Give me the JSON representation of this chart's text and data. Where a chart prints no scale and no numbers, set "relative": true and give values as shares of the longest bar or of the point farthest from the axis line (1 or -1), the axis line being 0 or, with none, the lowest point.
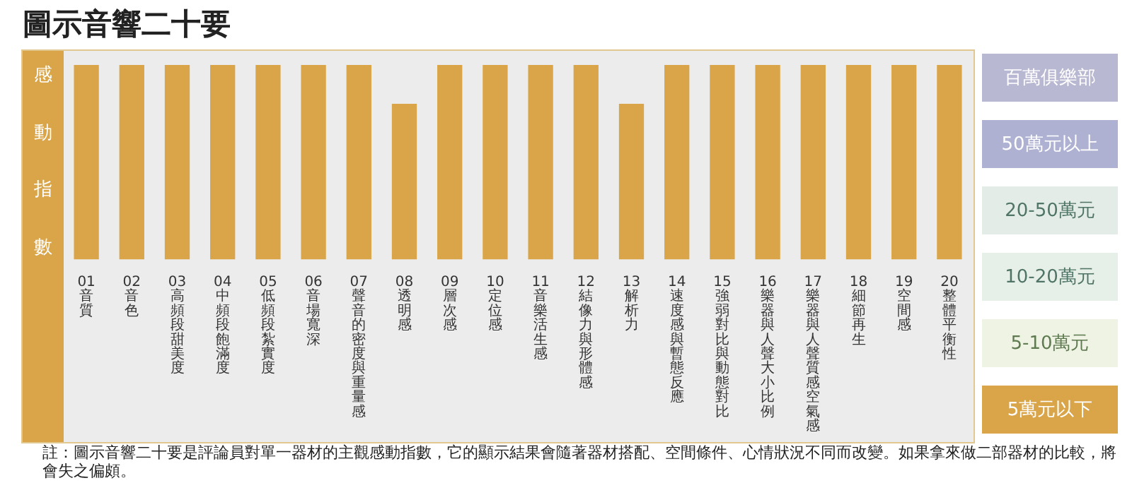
{
  "chart_data": {
    "type": "bar",
    "title": "圖示音響二十要",
    "ylabel": "感動指數",
    "relative": true,
    "categories": [
      "01 音質",
      "02 音色",
      "03 高頻段甜美度",
      "04 中頻段飽滿度",
      "05 低頻段紮實度",
      "06 音場寬深",
      "07 聲音的密度與重量感",
      "08 透明感",
      "09 層次感",
      "10 定位感",
      "11 音樂活生感",
      "12 結像力與形體感",
      "13 解析力",
      "14 速度感與暫態反應",
      "15 強弱對比與動態對比",
      "16 樂器與人聲大小比例",
      "17 樂器與人聲質感空氣感",
      "18 細節再生",
      "19 空間感",
      "20 整體平衡性"
    ],
    "values": [
      1,
      1,
      1,
      1,
      1,
      1,
      1,
      0.8,
      1,
      1,
      1,
      1,
      0.8,
      1,
      1,
      1,
      1,
      1,
      1,
      1
    ],
    "color": "#d9a548",
    "annotations": [
      "百萬俱樂部",
      "50萬元以上",
      "20-50萬元",
      "10-20萬元",
      "5-10萬元",
      "5萬元以下",
      "註：圖示音響二十要是評論員對單一器材的主觀感動指數，它的顯示結果會隨著器材搭配、空間條件、心情狀況不同而改變。如果拿來做二部器材的比較，將會失之偏頗。"
    ]
  }
}
